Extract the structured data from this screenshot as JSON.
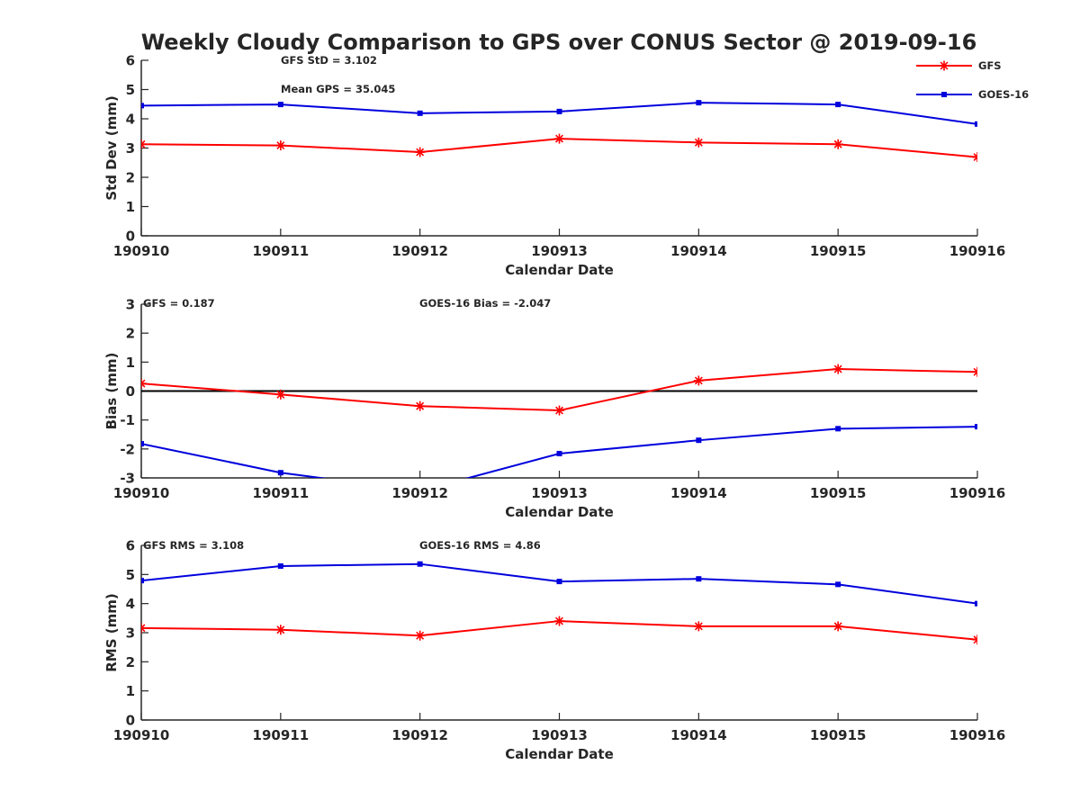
{
  "chart_data": [
    {
      "type": "line",
      "title": "Weekly Cloudy Comparison to GPS over CONUS Sector @ 2019-09-16",
      "xlabel": "Calendar Date",
      "ylabel": "Std Dev (mm)",
      "categories": [
        "190910",
        "190911",
        "190912",
        "190913",
        "190914",
        "190915",
        "190916"
      ],
      "ylim": [
        0,
        6
      ],
      "yticks": [
        0,
        1,
        2,
        3,
        4,
        5,
        6
      ],
      "grid": false,
      "legend_position": "top-right",
      "series": [
        {
          "name": "GFS",
          "color": "#ff0000",
          "marker": "asterisk",
          "values": [
            3.13,
            3.09,
            2.86,
            3.32,
            3.19,
            3.13,
            2.69
          ]
        },
        {
          "name": "GOES-16",
          "color": "#0000dd",
          "marker": "square",
          "values": [
            4.45,
            4.49,
            4.19,
            4.25,
            4.55,
            4.49,
            3.82
          ]
        }
      ],
      "annotations": [
        "GFS StD = 3.102",
        "Mean GPS = 35.045"
      ]
    },
    {
      "type": "line",
      "xlabel": "Calendar Date",
      "ylabel": "Bias (mm)",
      "categories": [
        "190910",
        "190911",
        "190912",
        "190913",
        "190914",
        "190915",
        "190916"
      ],
      "ylim": [
        -3,
        3
      ],
      "yticks": [
        -3,
        -2,
        -1,
        0,
        1,
        2,
        3
      ],
      "grid": false,
      "zero_line": true,
      "series": [
        {
          "name": "GFS",
          "color": "#ff0000",
          "marker": "asterisk",
          "values": [
            0.26,
            -0.12,
            -0.52,
            -0.67,
            0.36,
            0.76,
            0.66
          ]
        },
        {
          "name": "GOES-16",
          "color": "#0000dd",
          "marker": "square",
          "values": [
            -1.82,
            -2.82,
            -3.45,
            -2.16,
            -1.7,
            -1.3,
            -1.23
          ]
        }
      ],
      "annotations": [
        "GFS = 0.187",
        "GOES-16 Bias  = -2.047"
      ]
    },
    {
      "type": "line",
      "xlabel": "Calendar Date",
      "ylabel": "RMS (mm)",
      "categories": [
        "190910",
        "190911",
        "190912",
        "190913",
        "190914",
        "190915",
        "190916"
      ],
      "ylim": [
        0,
        6
      ],
      "yticks": [
        0,
        1,
        2,
        3,
        4,
        5,
        6
      ],
      "grid": false,
      "series": [
        {
          "name": "GFS",
          "color": "#ff0000",
          "marker": "asterisk",
          "values": [
            3.16,
            3.1,
            2.9,
            3.4,
            3.22,
            3.22,
            2.76
          ]
        },
        {
          "name": "GOES-16",
          "color": "#0000dd",
          "marker": "square",
          "values": [
            4.79,
            5.29,
            5.36,
            4.76,
            4.85,
            4.66,
            4.0
          ]
        }
      ],
      "annotations": [
        "GFS RMS = 3.108",
        "GOES-16 RMS = 4.86"
      ]
    }
  ]
}
